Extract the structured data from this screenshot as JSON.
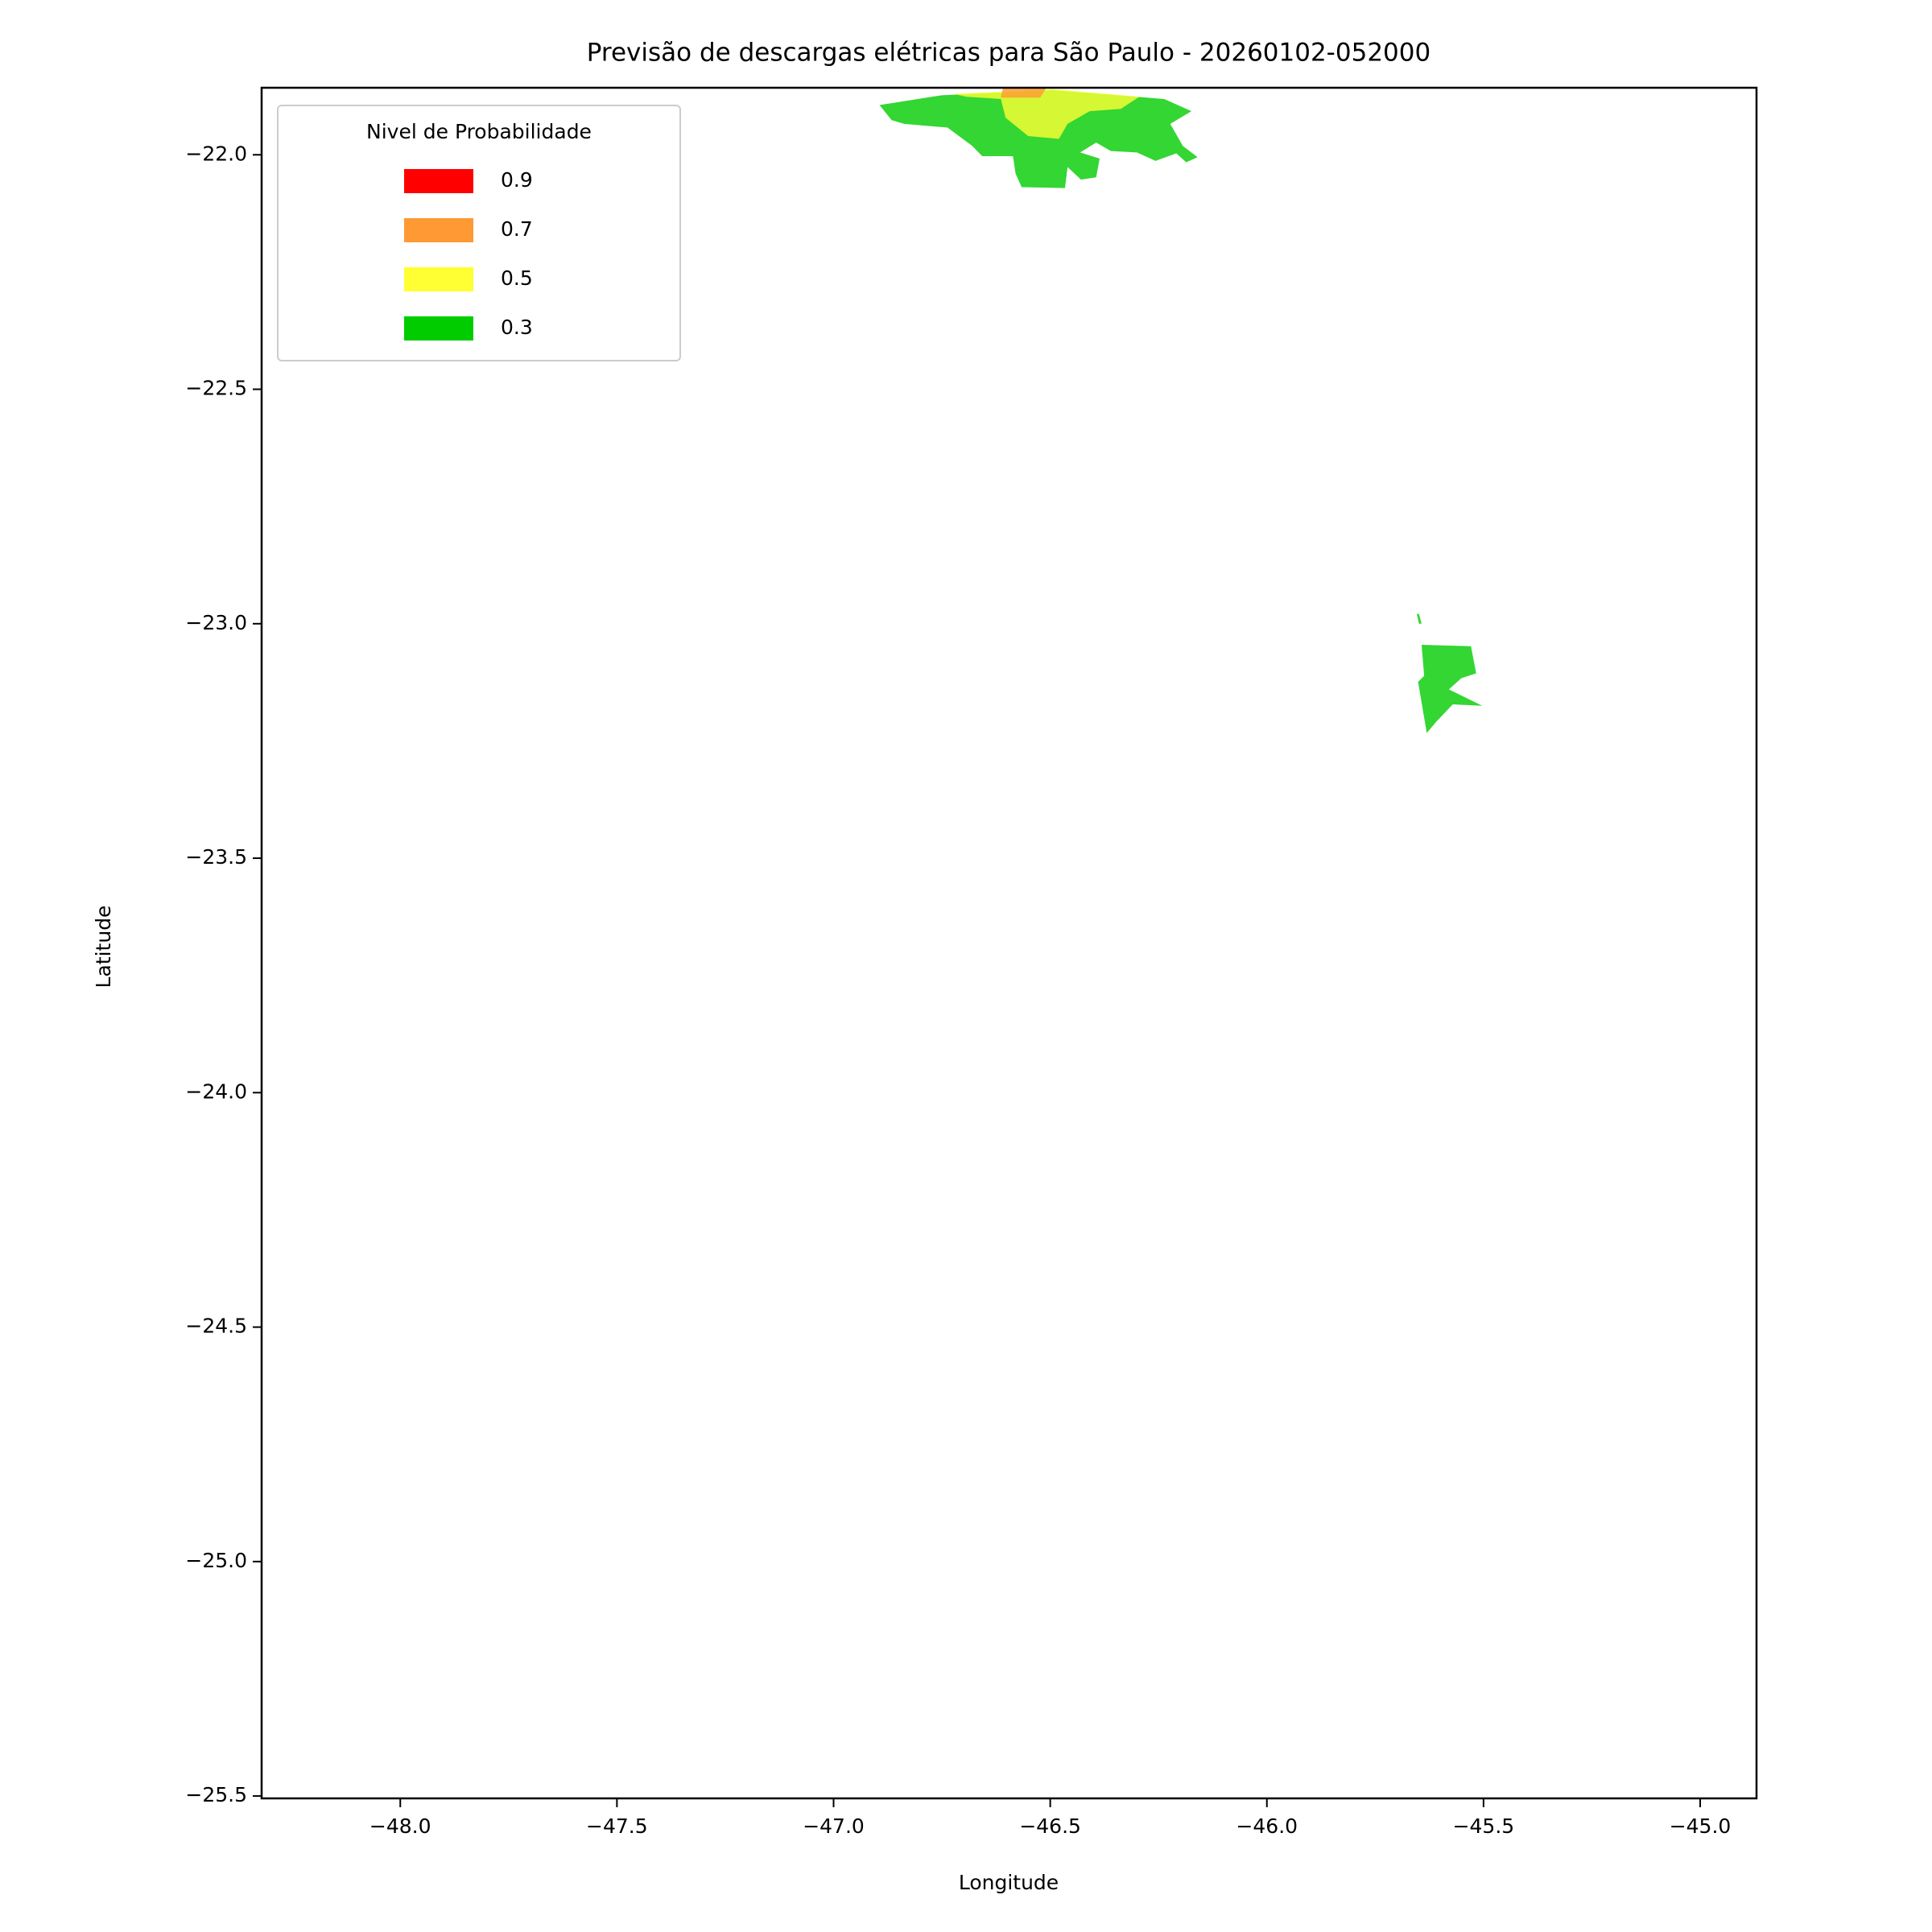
{
  "chart_data": {
    "type": "contour_map",
    "title": "Previsão de descargas elétricas para São Paulo - 20260102-052000",
    "x_label": "Longitude",
    "y_label": "Latitude",
    "xlim": [
      -48.32,
      -44.87
    ],
    "ylim": [
      -25.505,
      -21.857
    ],
    "xticks": [
      {
        "value": -48.0,
        "label": "−48.0"
      },
      {
        "value": -47.5,
        "label": "−47.5"
      },
      {
        "value": -47.0,
        "label": "−47.0"
      },
      {
        "value": -46.5,
        "label": "−46.5"
      },
      {
        "value": -46.0,
        "label": "−46.0"
      },
      {
        "value": -45.5,
        "label": "−45.5"
      },
      {
        "value": -45.0,
        "label": "−45.0"
      }
    ],
    "yticks": [
      {
        "value": -22.0,
        "label": "−22.0"
      },
      {
        "value": -22.5,
        "label": "−22.5"
      },
      {
        "value": -23.0,
        "label": "−23.0"
      },
      {
        "value": -23.5,
        "label": "−23.5"
      },
      {
        "value": -24.0,
        "label": "−24.0"
      },
      {
        "value": -24.5,
        "label": "−24.5"
      },
      {
        "value": -25.0,
        "label": "−25.0"
      },
      {
        "value": -25.5,
        "label": "−25.5"
      }
    ],
    "legend_title": "Nivel de Probabilidade",
    "legend_position": "upper left",
    "levels": [
      {
        "value": 0.9,
        "color": "#ff0000"
      },
      {
        "value": 0.7,
        "color": "#ff9933"
      },
      {
        "value": 0.5,
        "color": "#ffff33"
      },
      {
        "value": 0.3,
        "color": "#00cc00"
      }
    ],
    "fill_opacity": 0.8,
    "regions": [
      {
        "level": 0.3,
        "lon": [
          -46.894,
          -46.751,
          -46.494,
          -46.237,
          -46.174,
          -46.223,
          -46.194,
          -46.16,
          -46.186,
          -46.209,
          -46.257,
          -46.3,
          -46.36,
          -46.394,
          -46.431,
          -46.386,
          -46.394,
          -46.429,
          -46.46,
          -46.466,
          -46.566,
          -46.58,
          -46.586,
          -46.657,
          -46.68,
          -46.737,
          -46.837,
          -46.866
        ],
        "lat": [
          -21.894,
          -21.873,
          -21.862,
          -21.881,
          -21.907,
          -21.934,
          -21.981,
          -22.005,
          -22.016,
          -21.997,
          -22.013,
          -21.995,
          -21.992,
          -21.974,
          -21.995,
          -22.008,
          -22.048,
          -22.053,
          -22.026,
          -22.071,
          -22.069,
          -22.04,
          -22.003,
          -22.003,
          -21.981,
          -21.942,
          -21.934,
          -21.926
        ]
      },
      {
        "level": 0.5,
        "lon": [
          -46.723,
          -46.494,
          -46.294,
          -46.337,
          -46.409,
          -46.46,
          -46.48,
          -46.551,
          -46.603,
          -46.614,
          -46.694
        ],
        "lat": [
          -21.87,
          -21.86,
          -21.876,
          -21.902,
          -21.907,
          -21.934,
          -21.966,
          -21.96,
          -21.921,
          -21.881,
          -21.876
        ]
      },
      {
        "level": 0.7,
        "lon": [
          -46.609,
          -46.509,
          -46.523,
          -46.614
        ],
        "lat": [
          -21.857,
          -21.857,
          -21.878,
          -21.878
        ]
      },
      {
        "level": 0.3,
        "lon": [
          -45.643,
          -45.529,
          -45.517,
          -45.551,
          -45.58,
          -45.503,
          -45.571,
          -45.609,
          -45.631,
          -45.651,
          -45.637
        ],
        "lat": [
          -23.045,
          -23.048,
          -23.106,
          -23.116,
          -23.14,
          -23.175,
          -23.172,
          -23.209,
          -23.233,
          -23.124,
          -23.111
        ]
      },
      {
        "level": 0.3,
        "lon": [
          -45.654,
          -45.649,
          -45.643,
          -45.649
        ],
        "lat": [
          -22.979,
          -22.979,
          -23.0,
          -23.0
        ]
      }
    ]
  }
}
